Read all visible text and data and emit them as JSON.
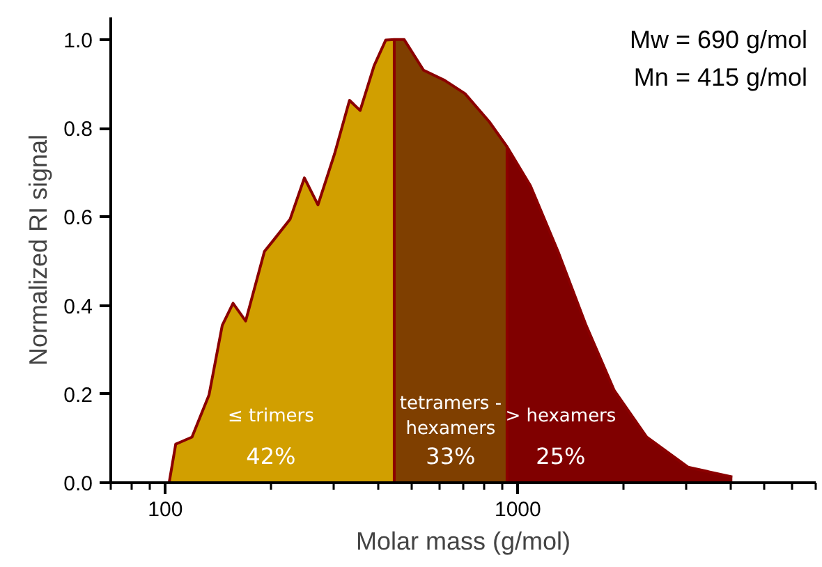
{
  "chart_data": {
    "type": "area",
    "xlabel": "Molar mass (g/mol)",
    "ylabel": "Normalized RI signal",
    "log": "x",
    "xlim": [
      70,
      7000
    ],
    "xticks": [
      {
        "value": 70,
        "label": null
      },
      {
        "value": 80,
        "label": null
      },
      {
        "value": 90,
        "label": null
      },
      100,
      {
        "value": 200,
        "label": null
      },
      {
        "value": 300,
        "label": null
      },
      {
        "value": 400,
        "label": null
      },
      {
        "value": 500,
        "label": null
      },
      {
        "value": 600,
        "label": null
      },
      {
        "value": 700,
        "label": null
      },
      {
        "value": 800,
        "label": null
      },
      {
        "value": 900,
        "label": null
      },
      1000,
      {
        "value": 2000,
        "label": null
      },
      {
        "value": 3000,
        "label": null
      },
      {
        "value": 4000,
        "label": null
      },
      {
        "value": 5000,
        "label": null
      },
      {
        "value": 6000,
        "label": null
      },
      {
        "value": 7000,
        "label": null
      }
    ],
    "ylim": [
      0,
      1.05
    ],
    "yticks": [
      {
        "value": 0,
        "label": "0.0"
      },
      {
        "value": 0.2,
        "label": "0.2"
      },
      {
        "value": 0.4,
        "label": "0.4"
      },
      {
        "value": 0.6,
        "label": "0.6"
      },
      {
        "value": 0.8,
        "label": "0.8"
      },
      {
        "value": 1,
        "label": "1.0"
      }
    ],
    "grid": false,
    "series": [
      {
        "name": "≤ trimers",
        "color": "#d19f00",
        "x": [
          89,
          102.5,
          107,
          119,
          133,
          145,
          155.6,
          169,
          191,
          203,
          226,
          248,
          271,
          302,
          333,
          357,
          391,
          422,
          446
        ],
        "values": [
          0,
          0,
          0.087,
          0.103,
          0.198,
          0.355,
          0.405,
          0.365,
          0.522,
          0.548,
          0.595,
          0.688,
          0.627,
          0.742,
          0.863,
          0.84,
          0.941,
          0.999,
          1.0
        ]
      },
      {
        "name": "tetramers -\nhexamers",
        "color": "#7f3f00",
        "x": [
          446,
          476,
          540,
          620,
          708,
          829,
          932
        ],
        "values": [
          1.0,
          1.0,
          0.931,
          0.908,
          0.878,
          0.815,
          0.758
        ]
      },
      {
        "name": "> hexamers",
        "color": "#800000",
        "x": [
          932,
          1086,
          1300,
          1562,
          1878,
          2320,
          3040,
          4060
        ],
        "values": [
          0.758,
          0.67,
          0.522,
          0.355,
          0.208,
          0.103,
          0.035,
          0.013
        ]
      }
    ],
    "annotations": [
      "Mw = 690 g/mol",
      "Mn = 415 g/mol",
      "42%",
      "33%",
      "25%"
    ]
  }
}
